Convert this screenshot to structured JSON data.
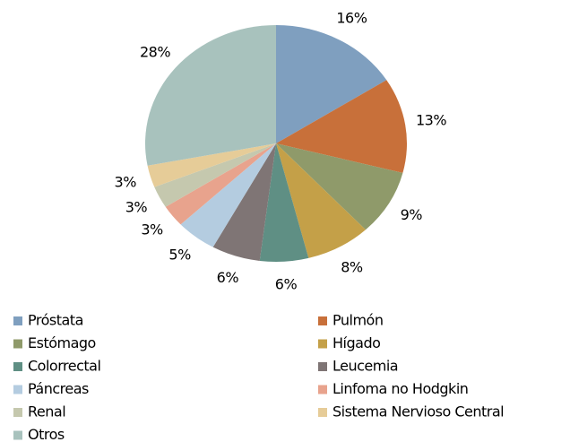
{
  "chart_data": {
    "type": "pie",
    "categories": [
      "Próstata",
      "Pulmón",
      "Estómago",
      "Hígado",
      "Colorrectal",
      "Leucemia",
      "Páncreas",
      "Linfoma no Hodgkin",
      "Renal",
      "Sistema Nervioso Central",
      "Otros"
    ],
    "values": [
      16,
      13,
      9,
      8,
      6,
      6,
      5,
      3,
      3,
      3,
      28
    ],
    "value_labels": [
      "16%",
      "13%",
      "9%",
      "8%",
      "6%",
      "6%",
      "5%",
      "3%",
      "3%",
      "3%",
      "28%"
    ],
    "colors": [
      "#7f9fbf",
      "#c8703a",
      "#8f9a6a",
      "#c4a048",
      "#5f8f84",
      "#7f7575",
      "#b4cce0",
      "#e8a38d",
      "#c5c8ae",
      "#e6cc98",
      "#a8c2bd"
    ],
    "legend": "bottom"
  }
}
